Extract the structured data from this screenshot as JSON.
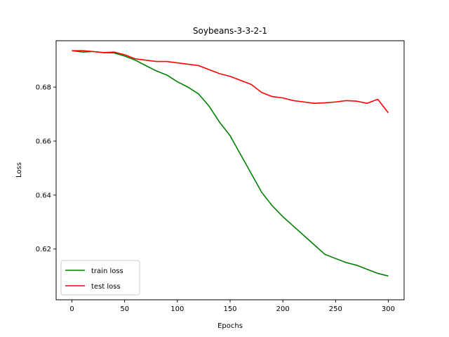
{
  "chart_data": {
    "type": "line",
    "title": "Soybeans-3-3-2-1",
    "xlabel": "Epochs",
    "ylabel": "Loss",
    "xlim": [
      -15,
      315
    ],
    "ylim": [
      0.6012,
      0.6972
    ],
    "xticks": [
      0,
      50,
      100,
      150,
      200,
      250,
      300
    ],
    "xtick_labels": [
      "0",
      "50",
      "100",
      "150",
      "200",
      "250",
      "300"
    ],
    "yticks": [
      0.62,
      0.64,
      0.66,
      0.68
    ],
    "ytick_labels": [
      "0.62",
      "0.64",
      "0.66",
      "0.68"
    ],
    "grid": false,
    "legend_position": "lower-left",
    "series": [
      {
        "name": "train loss",
        "color": "#008000",
        "x": [
          0,
          10,
          20,
          30,
          40,
          50,
          60,
          70,
          80,
          90,
          100,
          110,
          120,
          130,
          140,
          150,
          160,
          170,
          180,
          190,
          200,
          210,
          220,
          230,
          240,
          250,
          260,
          270,
          280,
          290,
          300
        ],
        "y": [
          0.6935,
          0.693,
          0.6932,
          0.6928,
          0.6927,
          0.6915,
          0.69,
          0.688,
          0.686,
          0.6845,
          0.682,
          0.68,
          0.6775,
          0.673,
          0.667,
          0.662,
          0.655,
          0.648,
          0.641,
          0.636,
          0.632,
          0.6285,
          0.625,
          0.6215,
          0.618,
          0.6165,
          0.615,
          0.614,
          0.6125,
          0.611,
          0.61
        ]
      },
      {
        "name": "test loss",
        "color": "#ff0000",
        "x": [
          0,
          10,
          20,
          30,
          40,
          50,
          60,
          70,
          80,
          90,
          100,
          110,
          120,
          130,
          140,
          150,
          160,
          170,
          180,
          190,
          200,
          210,
          220,
          230,
          240,
          250,
          260,
          270,
          280,
          290,
          300
        ],
        "y": [
          0.6935,
          0.6935,
          0.6932,
          0.6928,
          0.693,
          0.692,
          0.6905,
          0.69,
          0.6895,
          0.6895,
          0.689,
          0.6885,
          0.688,
          0.6865,
          0.685,
          0.684,
          0.6825,
          0.681,
          0.678,
          0.6765,
          0.676,
          0.675,
          0.6745,
          0.674,
          0.6742,
          0.6745,
          0.675,
          0.6748,
          0.674,
          0.6755,
          0.6705
        ]
      }
    ]
  }
}
